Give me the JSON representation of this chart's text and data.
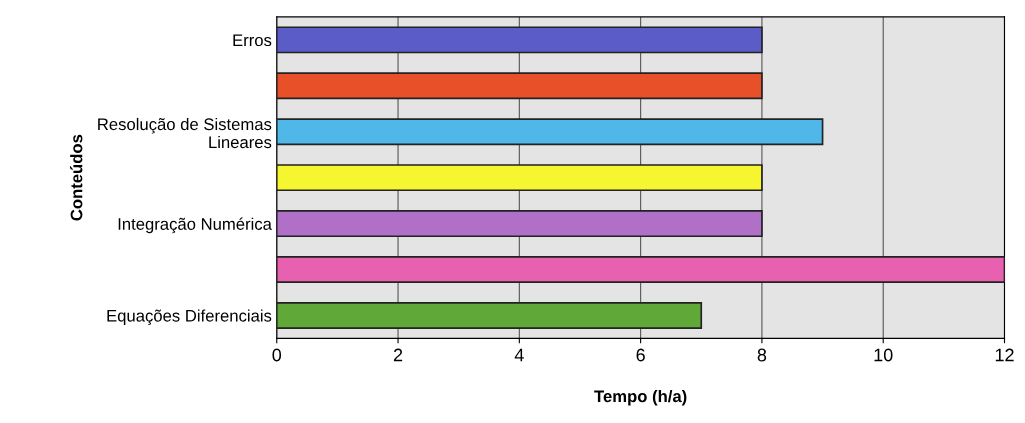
{
  "chart_data": {
    "type": "bar",
    "orientation": "horizontal",
    "xlabel": "Tempo (h/a)",
    "ylabel": "Conteúdos",
    "categories": [
      "Erros",
      null,
      "Resolução de Sistemas\nLineares",
      null,
      "Integração Numérica",
      null,
      "Equações Diferenciais"
    ],
    "values": [
      8,
      8,
      9,
      8,
      8,
      12,
      7
    ],
    "colors": [
      "#5c5cc8",
      "#e8502a",
      "#50b8e8",
      "#f5f530",
      "#b070c8",
      "#e860b0",
      "#60a838"
    ],
    "xlim": [
      0,
      12
    ],
    "xticks": [
      0,
      2,
      4,
      6,
      8,
      10,
      12
    ],
    "grid": "x"
  }
}
